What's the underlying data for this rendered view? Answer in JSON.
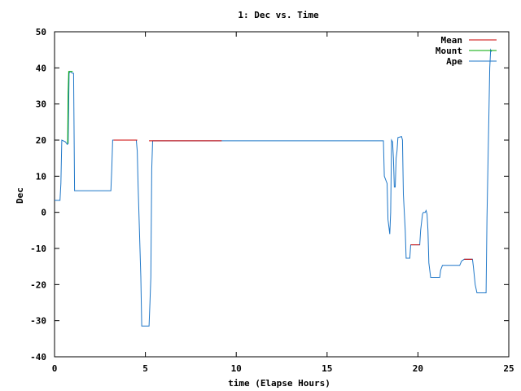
{
  "chart_data": {
    "type": "line",
    "title": "1: Dec vs. Time",
    "xlabel": "time (Elapse Hours)",
    "ylabel": "Dec",
    "xlim": [
      0,
      25
    ],
    "ylim": [
      -40,
      50
    ],
    "xticks": [
      0,
      5,
      10,
      15,
      20,
      25
    ],
    "yticks": [
      -40,
      -30,
      -20,
      -10,
      0,
      10,
      20,
      30,
      40,
      50
    ],
    "grid": false,
    "legend_position": "top-right",
    "series": [
      {
        "name": "Mean",
        "color": "#cc0000",
        "points": [
          [
            3.25,
            20.0
          ],
          [
            4.55,
            20.0
          ],
          [
            5.2,
            19.8
          ],
          [
            9.2,
            19.8
          ],
          [
            19.6,
            -9.0
          ],
          [
            20.1,
            -9.0
          ],
          [
            22.55,
            -13.0
          ],
          [
            23.0,
            -13.0
          ]
        ]
      },
      {
        "name": "Mount",
        "color": "#00aa00",
        "points": [
          [
            0.72,
            19.0
          ],
          [
            0.75,
            33.0
          ],
          [
            0.78,
            39.0
          ],
          [
            1.0,
            39.0
          ]
        ]
      },
      {
        "name": "Ape",
        "color": "#1f77c8",
        "points": [
          [
            0,
            3.3
          ],
          [
            0.3,
            3.3
          ],
          [
            0.35,
            8
          ],
          [
            0.4,
            20
          ],
          [
            0.6,
            19.5
          ],
          [
            0.7,
            18.8
          ],
          [
            0.75,
            19
          ],
          [
            0.8,
            38.5
          ],
          [
            0.85,
            39
          ],
          [
            1.0,
            38.5
          ],
          [
            1.05,
            38.5
          ],
          [
            1.1,
            6.0
          ],
          [
            3.1,
            6.0
          ],
          [
            3.15,
            12
          ],
          [
            3.2,
            20.0
          ],
          [
            4.5,
            20.0
          ],
          [
            4.55,
            17
          ],
          [
            4.6,
            7
          ],
          [
            4.75,
            -18
          ],
          [
            4.8,
            -31.5
          ],
          [
            5.2,
            -31.5
          ],
          [
            5.25,
            -25
          ],
          [
            5.3,
            -18
          ],
          [
            5.35,
            12
          ],
          [
            5.4,
            19.8
          ],
          [
            18.1,
            19.8
          ],
          [
            18.15,
            10
          ],
          [
            18.3,
            8
          ],
          [
            18.35,
            -2
          ],
          [
            18.45,
            -6
          ],
          [
            18.5,
            0
          ],
          [
            18.55,
            20
          ],
          [
            18.6,
            19.5
          ],
          [
            18.65,
            15
          ],
          [
            18.7,
            7
          ],
          [
            18.75,
            7
          ],
          [
            18.8,
            15
          ],
          [
            18.85,
            17
          ],
          [
            18.9,
            20.7
          ],
          [
            19.1,
            21
          ],
          [
            19.15,
            20
          ],
          [
            19.2,
            5
          ],
          [
            19.3,
            -5
          ],
          [
            19.35,
            -12.7
          ],
          [
            19.55,
            -12.7
          ],
          [
            19.6,
            -9.0
          ],
          [
            20.1,
            -9.0
          ],
          [
            20.15,
            -5
          ],
          [
            20.25,
            -0.5
          ],
          [
            20.3,
            0
          ],
          [
            20.4,
            0
          ],
          [
            20.45,
            0.5
          ],
          [
            20.5,
            -0.5
          ],
          [
            20.55,
            -5
          ],
          [
            20.6,
            -14
          ],
          [
            20.7,
            -18
          ],
          [
            21.2,
            -18
          ],
          [
            21.25,
            -16
          ],
          [
            21.35,
            -14.7
          ],
          [
            22.3,
            -14.7
          ],
          [
            22.4,
            -13.5
          ],
          [
            22.55,
            -13.0
          ],
          [
            23.0,
            -13.0
          ],
          [
            23.05,
            -15
          ],
          [
            23.15,
            -20
          ],
          [
            23.25,
            -22.3
          ],
          [
            23.75,
            -22.3
          ],
          [
            23.8,
            -1.5
          ],
          [
            23.9,
            25
          ],
          [
            23.95,
            40
          ],
          [
            24.0,
            45
          ],
          [
            24.05,
            44.5
          ]
        ]
      }
    ]
  }
}
